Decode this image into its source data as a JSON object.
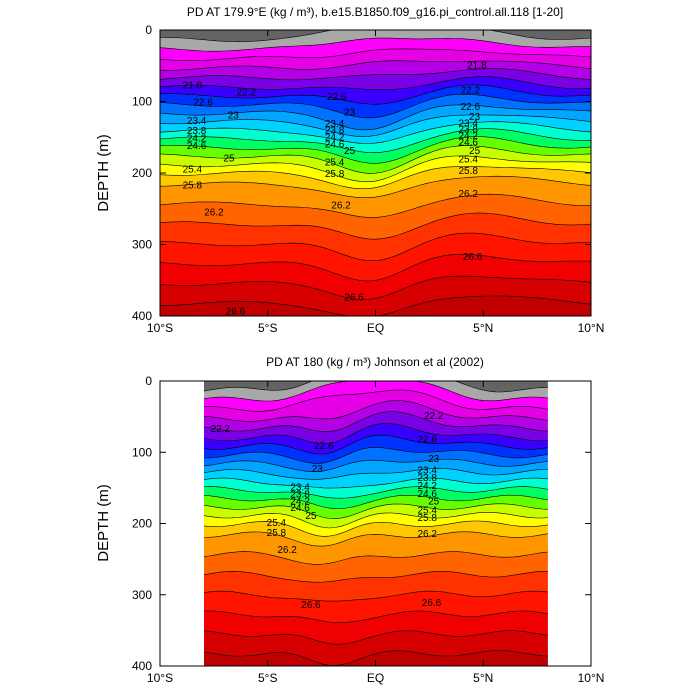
{
  "chart_data": [
    {
      "type": "contour",
      "title": "PD AT 179.9°E (kg / m³), b.e15.B1850.f09_g16.pi_control.all.118 [1-20]",
      "ylabel": "DEPTH (m)",
      "xlabel": "",
      "xlim": [
        -10,
        10
      ],
      "ylim": [
        400,
        0
      ],
      "xticks": [
        "10°S",
        "5°S",
        "EQ",
        "5°N",
        "10°N"
      ],
      "yticks": [
        "0",
        "100",
        "200",
        "300",
        "400"
      ],
      "data_extent_lat": [
        -10,
        10
      ],
      "levels": [
        21.8,
        22.2,
        22.6,
        23,
        23.4,
        23.8,
        24.2,
        24.6,
        25,
        25.4,
        25.8,
        26.2,
        26.6
      ],
      "labeled_contours": [
        {
          "value": "21.8",
          "points": [
            [
              -8.5,
              78
            ],
            [
              4.7,
              50
            ]
          ]
        },
        {
          "value": "22.2",
          "points": [
            [
              -6.0,
              88
            ],
            [
              4.4,
              85
            ]
          ]
        },
        {
          "value": "22.6",
          "points": [
            [
              -8.0,
              102
            ],
            [
              -1.8,
              94
            ],
            [
              4.4,
              108
            ]
          ]
        },
        {
          "value": "23",
          "points": [
            [
              -6.6,
              120
            ],
            [
              -1.2,
              116
            ],
            [
              4.6,
              122
            ]
          ]
        },
        {
          "value": "23.4",
          "points": [
            [
              -8.3,
              128
            ],
            [
              -1.9,
              132
            ],
            [
              4.3,
              131
            ]
          ]
        },
        {
          "value": "23.8",
          "points": [
            [
              -8.3,
              142
            ],
            [
              -1.9,
              141
            ],
            [
              4.3,
              140
            ]
          ]
        },
        {
          "value": "24.2",
          "points": [
            [
              -8.3,
              152
            ],
            [
              -1.9,
              151
            ],
            [
              4.3,
              149
            ]
          ]
        },
        {
          "value": "24.6",
          "points": [
            [
              -8.3,
              163
            ],
            [
              -1.9,
              161
            ],
            [
              4.3,
              158
            ]
          ]
        },
        {
          "value": "25",
          "points": [
            [
              -6.8,
              180
            ],
            [
              -1.2,
              170
            ],
            [
              4.6,
              170
            ]
          ]
        },
        {
          "value": "25.4",
          "points": [
            [
              -8.5,
              196
            ],
            [
              -1.9,
              186
            ],
            [
              4.3,
              182
            ]
          ]
        },
        {
          "value": "25.8",
          "points": [
            [
              -8.5,
              218
            ],
            [
              -1.9,
              202
            ],
            [
              4.3,
              198
            ]
          ]
        },
        {
          "value": "26.2",
          "points": [
            [
              -7.5,
              256
            ],
            [
              -1.6,
              246
            ],
            [
              4.3,
              230
            ]
          ]
        },
        {
          "value": "26.6",
          "points": [
            [
              -6.5,
              394
            ],
            [
              -1.0,
              375
            ],
            [
              4.5,
              318
            ]
          ]
        }
      ]
    },
    {
      "type": "contour",
      "title": "PD AT 180 (kg / m³) Johnson et al (2002)",
      "ylabel": "DEPTH (m)",
      "xlabel": "",
      "xlim": [
        -10,
        10
      ],
      "ylim": [
        400,
        0
      ],
      "xticks": [
        "10°S",
        "5°S",
        "EQ",
        "5°N",
        "10°N"
      ],
      "yticks": [
        "0",
        "100",
        "200",
        "300",
        "400"
      ],
      "data_extent_lat": [
        -8,
        8
      ],
      "levels": [
        22.2,
        22.6,
        23,
        23.4,
        23.8,
        24.2,
        24.6,
        25,
        25.4,
        25.8,
        26.2,
        26.6
      ],
      "labeled_contours": [
        {
          "value": "22.2",
          "points": [
            [
              -7.2,
              68
            ],
            [
              2.7,
              50
            ]
          ]
        },
        {
          "value": "22.6",
          "points": [
            [
              -2.4,
              92
            ],
            [
              2.4,
              83
            ]
          ]
        },
        {
          "value": "23",
          "points": [
            [
              -2.7,
              124
            ],
            [
              2.7,
              110
            ]
          ]
        },
        {
          "value": "23.4",
          "points": [
            [
              -3.5,
              150
            ],
            [
              2.4,
              126
            ]
          ]
        },
        {
          "value": "23.8",
          "points": [
            [
              -3.5,
              160
            ],
            [
              2.4,
              137
            ]
          ]
        },
        {
          "value": "24.2",
          "points": [
            [
              -3.5,
              170
            ],
            [
              2.4,
              148
            ]
          ]
        },
        {
          "value": "24.6",
          "points": [
            [
              -3.5,
              179
            ],
            [
              2.4,
              159
            ]
          ]
        },
        {
          "value": "25",
          "points": [
            [
              -3.0,
              190
            ],
            [
              2.7,
              170
            ]
          ]
        },
        {
          "value": "25.4",
          "points": [
            [
              -4.6,
              200
            ],
            [
              2.4,
              182
            ]
          ]
        },
        {
          "value": "25.8",
          "points": [
            [
              -4.6,
              214
            ],
            [
              2.4,
              193
            ]
          ]
        },
        {
          "value": "26.2",
          "points": [
            [
              -4.1,
              238
            ],
            [
              2.4,
              215
            ]
          ]
        },
        {
          "value": "26.6",
          "points": [
            [
              -3.0,
              315
            ],
            [
              2.6,
              312
            ]
          ]
        }
      ]
    }
  ],
  "colors": {
    "palette": [
      "#646464",
      "#a8a8a8",
      "#ff00ff",
      "#e600e6",
      "#b400e6",
      "#7a00e6",
      "#3a00ff",
      "#0032ff",
      "#0072ff",
      "#00a6ff",
      "#00d2ff",
      "#00ffd0",
      "#00ff64",
      "#64ff00",
      "#c8ff00",
      "#ffff00",
      "#ffc800",
      "#ff9600",
      "#ff6400",
      "#ff3200",
      "#ff1400",
      "#f00000",
      "#d70000",
      "#c00000"
    ],
    "axis": "#000000",
    "contour_line": "#000000"
  }
}
